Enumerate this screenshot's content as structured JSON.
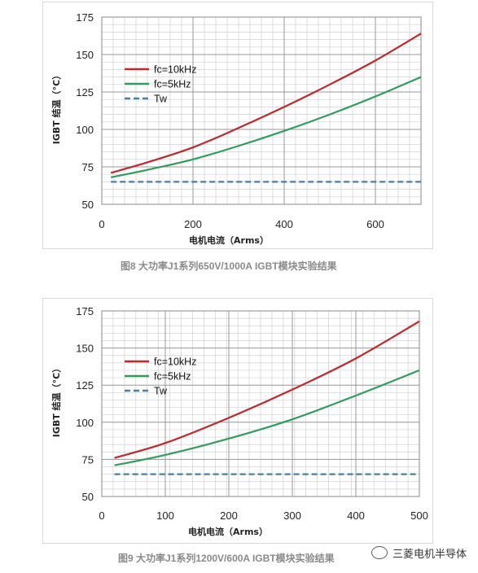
{
  "chart_data": [
    {
      "type": "line",
      "xlabel": "电机电流（Arms）",
      "ylabel": "IGBT 结温（°C）",
      "xlim": [
        0,
        700
      ],
      "ylim": [
        50,
        175
      ],
      "xticks": [
        0,
        200,
        400,
        600
      ],
      "yticks": [
        50,
        75,
        100,
        125,
        150,
        175
      ],
      "grid": true,
      "legend_position": "upper-left",
      "series": [
        {
          "name": "fc=10kHz",
          "color": "#c0282d",
          "style": "solid",
          "x": [
            20,
            100,
            200,
            300,
            400,
            500,
            600,
            700
          ],
          "y": [
            71,
            78,
            88,
            101,
            115,
            130,
            146,
            164
          ]
        },
        {
          "name": "fc=5kHz",
          "color": "#2e9e5e",
          "style": "solid",
          "x": [
            20,
            100,
            200,
            300,
            400,
            500,
            600,
            700
          ],
          "y": [
            68,
            73,
            80,
            89,
            99,
            110,
            122,
            135
          ]
        },
        {
          "name": "Tw",
          "color": "#4a7fa0",
          "style": "dashed",
          "x": [
            20,
            700
          ],
          "y": [
            65,
            65
          ]
        }
      ]
    },
    {
      "type": "line",
      "xlabel": "电机电流（Arms）",
      "ylabel": "IGBT 结温（°C）",
      "xlim": [
        0,
        500
      ],
      "ylim": [
        50,
        175
      ],
      "xticks": [
        0,
        100,
        200,
        300,
        400,
        500
      ],
      "yticks": [
        50,
        75,
        100,
        125,
        150,
        175
      ],
      "grid": true,
      "legend_position": "upper-left",
      "series": [
        {
          "name": "fc=10kHz",
          "color": "#c0282d",
          "style": "solid",
          "x": [
            20,
            100,
            200,
            300,
            400,
            500
          ],
          "y": [
            76,
            86,
            103,
            122,
            143,
            168
          ]
        },
        {
          "name": "fc=5kHz",
          "color": "#2e9e5e",
          "style": "solid",
          "x": [
            20,
            100,
            200,
            300,
            400,
            500
          ],
          "y": [
            71,
            78,
            89,
            102,
            118,
            135
          ]
        },
        {
          "name": "Tw",
          "color": "#4a7fa0",
          "style": "dashed",
          "x": [
            20,
            500
          ],
          "y": [
            65,
            65
          ]
        }
      ]
    }
  ],
  "captions": [
    "图8 大功率J1系列650V/1000A IGBT模块实验结果",
    "图9 大功率J1系列1200V/600A IGBT模块实验结果"
  ],
  "watermark": "三菱电机半导体"
}
